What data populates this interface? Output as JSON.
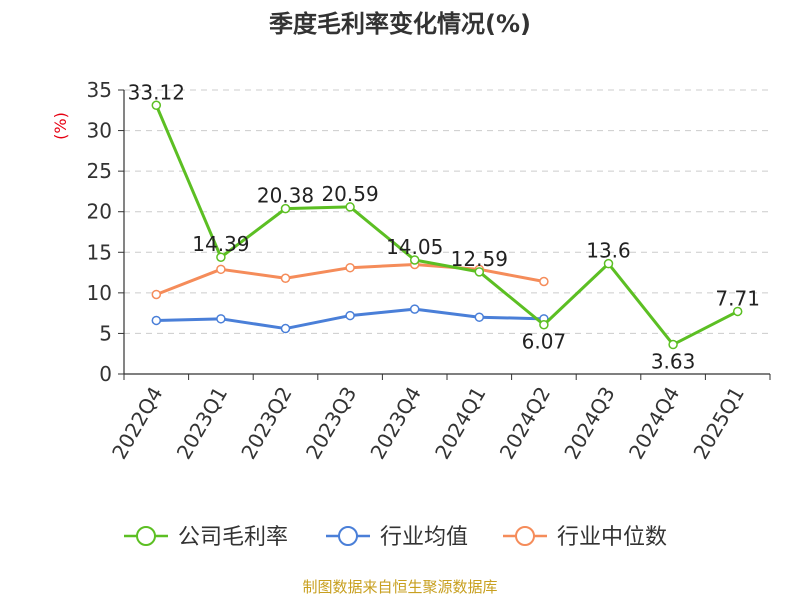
{
  "chart_data": {
    "type": "line",
    "title": "季度毛利率变化情况(%)",
    "ylabel": "(%)",
    "ylim": [
      0,
      35
    ],
    "yticks": [
      0,
      5,
      10,
      15,
      20,
      25,
      30,
      35
    ],
    "grid": true,
    "legend_position": "bottom",
    "categories": [
      "2022Q4",
      "2023Q1",
      "2023Q2",
      "2023Q3",
      "2023Q4",
      "2024Q1",
      "2024Q2",
      "2024Q3",
      "2024Q4",
      "2025Q1"
    ],
    "series": [
      {
        "name": "公司毛利率",
        "color": "#5cbf23",
        "values": [
          33.12,
          14.39,
          20.38,
          20.59,
          14.05,
          12.59,
          6.07,
          13.6,
          3.63,
          7.71
        ],
        "labels": [
          "33.12",
          "14.39",
          "20.38",
          "20.59",
          "14.05",
          "12.59",
          "6.07",
          "13.6",
          "3.63",
          "7.71"
        ]
      },
      {
        "name": "行业均值",
        "color": "#4a7fd8",
        "values": [
          6.6,
          6.8,
          5.6,
          7.2,
          8.0,
          7.0,
          6.8,
          null,
          null,
          null
        ]
      },
      {
        "name": "行业中位数",
        "color": "#f58c5a",
        "values": [
          9.8,
          12.9,
          11.8,
          13.1,
          13.5,
          12.9,
          11.4,
          null,
          null,
          null
        ]
      }
    ]
  },
  "footer": {
    "source": "制图数据来自恒生聚源数据库"
  }
}
